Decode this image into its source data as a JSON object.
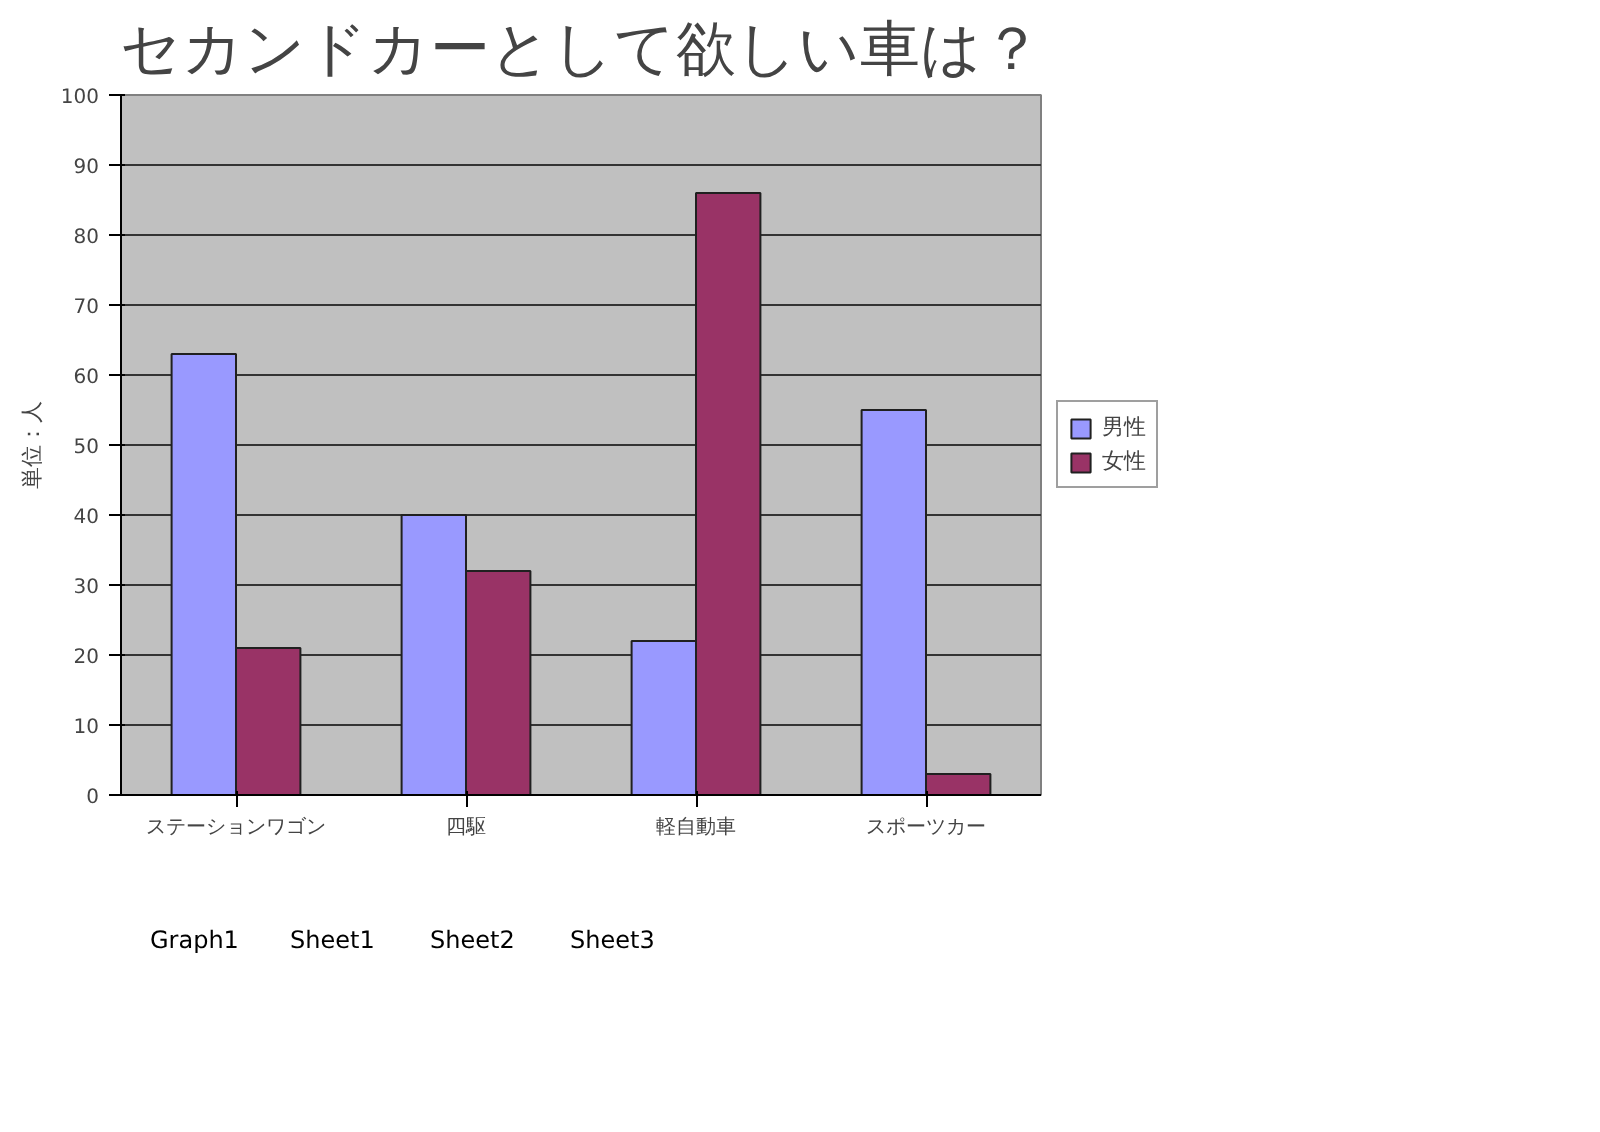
{
  "chart_data": {
    "type": "bar",
    "title": "セカンドカーとして欲しい車は？",
    "ylabel": "単位：人",
    "categories": [
      "ステーションワゴン",
      "四駆",
      "軽自動車",
      "スポーツカー"
    ],
    "series": [
      {
        "name": "男性",
        "color": "#9999ff",
        "values": [
          63,
          40,
          22,
          55
        ]
      },
      {
        "name": "女性",
        "color": "#993366",
        "values": [
          21,
          32,
          86,
          3
        ]
      }
    ],
    "ylim": [
      0,
      100
    ],
    "yticks": [
      0,
      10,
      20,
      30,
      40,
      50,
      60,
      70,
      80,
      90,
      100
    ],
    "grid": "y",
    "legend": "right",
    "annotations": [
      "Graph1",
      "Sheet1",
      "Sheet2",
      "Sheet3"
    ]
  }
}
